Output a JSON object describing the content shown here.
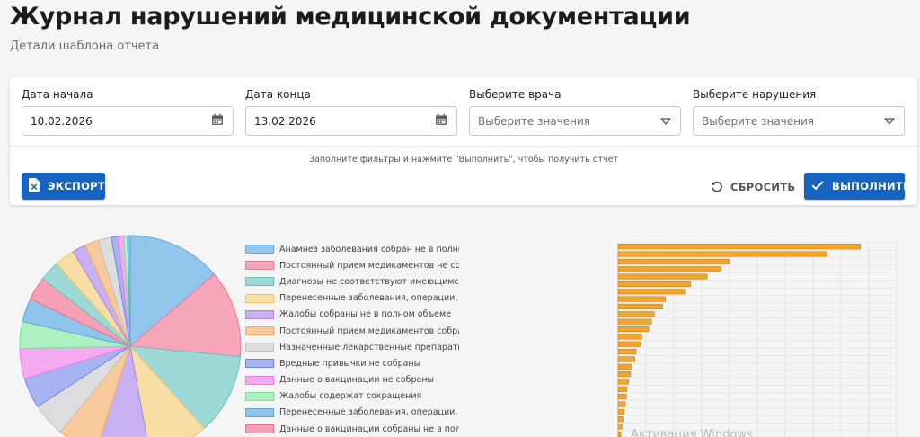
{
  "header": {
    "title": "Журнал нарушений медицинской документации",
    "subtitle": "Детали шаблона отчета"
  },
  "filters": {
    "date_from": {
      "label": "Дата начала",
      "value": "10.02.2026",
      "icon": "calendar-icon"
    },
    "date_to": {
      "label": "Дата конца",
      "value": "13.02.2026",
      "icon": "calendar-icon"
    },
    "doctor": {
      "label": "Выберите врача",
      "placeholder": "Выберите значения",
      "icon": "dropdown-triangle-icon"
    },
    "violation": {
      "label": "Выберите нарушения",
      "placeholder": "Выберите значения",
      "icon": "dropdown-triangle-icon"
    },
    "hint": "Заполните фильтры и нажмите \"Выполнить\", чтобы получить отчет"
  },
  "actions": {
    "export_label": "ЭКСПОРТ",
    "reset_label": "СБРОСИТЬ",
    "run_label": "ВЫПОЛНИТЬ",
    "accent": "#1565c0"
  },
  "watermark": "Активация Windows",
  "chart_data": [
    {
      "type": "pie",
      "title": "",
      "legend_position": "right",
      "slices": [
        {
          "label": "Анамнез заболевания собран не в полном объеме",
          "value": 14,
          "color": "#93c6ec",
          "border": "#5ea9df"
        },
        {
          "label": "Постоянный прием медикаментов не собран",
          "value": 13,
          "color": "#f6a6b8",
          "border": "#ec7a95"
        },
        {
          "label": "Диагнозы не соответствуют имеющимся данным",
          "value": 12,
          "color": "#9fd9d7",
          "border": "#62c2bf"
        },
        {
          "label": "Перенесенные заболевания, операции, травмы не собраны",
          "value": 9,
          "color": "#f8dea4",
          "border": "#f0c46a"
        },
        {
          "label": "Жалобы собраны не в полном объеме",
          "value": 8,
          "color": "#c7b1f2",
          "border": "#a487e6"
        },
        {
          "label": "Постоянный прием медикаментов собран не в полном объеме",
          "value": 6,
          "color": "#f7c99b",
          "border": "#efa865"
        },
        {
          "label": "Назначенные лекарственные препараты не указаны",
          "value": 5,
          "color": "#dddde0",
          "border": "#bfbfc4"
        },
        {
          "label": "Вредные привычки не собраны",
          "value": 4.5,
          "color": "#a6b4f2",
          "border": "#6f83e6"
        },
        {
          "label": "Данные о вакцинации не собраны",
          "value": 4.5,
          "color": "#f6aaf2",
          "border": "#eb7de5"
        },
        {
          "label": "Жалобы содержат сокращения",
          "value": 4,
          "color": "#adf1c1",
          "border": "#77e194"
        },
        {
          "label": "Перенесенные заболевания, операции, травмы собраны не в полном объеме",
          "value": 3.5,
          "color": "#8fc4ec",
          "border": "#5aa7df"
        },
        {
          "label": "Данные о вакцинации собраны не в полном объеме",
          "value": 3.5,
          "color": "#f5a0b5",
          "border": "#ea7192"
        },
        {
          "label": "",
          "value": 3,
          "color": "#9fd9d7",
          "border": "#62c2bf"
        },
        {
          "label": "",
          "value": 3,
          "color": "#f8dea4",
          "border": "#f0c46a"
        },
        {
          "label": "",
          "value": 2,
          "color": "#c7b1f2",
          "border": "#a487e6"
        },
        {
          "label": "",
          "value": 2,
          "color": "#f7c99b",
          "border": "#efa865"
        },
        {
          "label": "",
          "value": 2,
          "color": "#dddde0",
          "border": "#bfbfc4"
        },
        {
          "label": "",
          "value": 1,
          "color": "#a6b4f2",
          "border": "#6f83e6"
        },
        {
          "label": "",
          "value": 0.8,
          "color": "#f6aaf2",
          "border": "#eb7de5"
        },
        {
          "label": "",
          "value": 0.6,
          "color": "#adf1c1",
          "border": "#77e194"
        },
        {
          "label": "",
          "value": 0.4,
          "color": "#8fc4ec",
          "border": "#5aa7df"
        }
      ]
    },
    {
      "type": "bar",
      "orientation": "horizontal",
      "title": "",
      "grid": true,
      "color": "#f0a62c",
      "border": "#b97a14",
      "xlim": [
        0,
        100
      ],
      "values": [
        87,
        75,
        40,
        37,
        32,
        26,
        24,
        17,
        16,
        13,
        12,
        11,
        8.5,
        8,
        6.5,
        6,
        5,
        4.5,
        3.8,
        3.2,
        3,
        2.6,
        2.2,
        1.8,
        1.4,
        1
      ]
    }
  ]
}
